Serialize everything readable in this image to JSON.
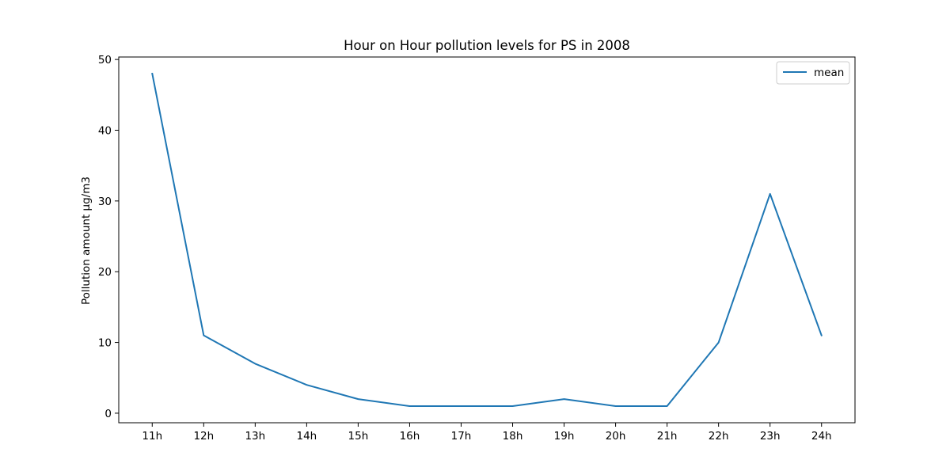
{
  "chart_data": {
    "type": "line",
    "title": "Hour on Hour pollution levels for PS in 2008",
    "xlabel": "",
    "ylabel": "Pollution amount µg/m3",
    "categories": [
      "11h",
      "12h",
      "13h",
      "14h",
      "15h",
      "16h",
      "17h",
      "18h",
      "19h",
      "20h",
      "21h",
      "22h",
      "23h",
      "24h"
    ],
    "series": [
      {
        "name": "mean",
        "color": "#1f77b4",
        "values": [
          48,
          11,
          7,
          4,
          2,
          1,
          1,
          1,
          2,
          1,
          1,
          10,
          31,
          11
        ]
      }
    ],
    "ylim": [
      -1.35,
      50.35
    ],
    "yticks": [
      0,
      10,
      20,
      30,
      40,
      50
    ],
    "grid": false,
    "legend": "top-right"
  }
}
